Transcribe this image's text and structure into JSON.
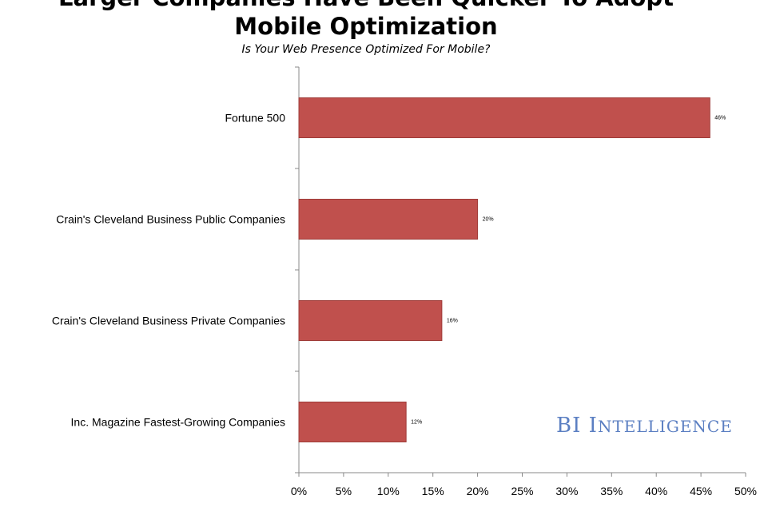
{
  "title_line1": "Larger Companies Have Been Quicker To Adopt",
  "title_line2": "Mobile Optimization",
  "subtitle": "Is Your Web Presence Optimized For Mobile?",
  "watermark": {
    "first": "BI",
    "second_initial": "I",
    "second_rest": "NTELLIGENCE"
  },
  "colors": {
    "bar": "#c0504d",
    "bar_edge": "#9e3b38",
    "axis": "#888888",
    "text": "#000000",
    "watermark": "#5b7fc2"
  },
  "chart_data": {
    "type": "bar",
    "orientation": "horizontal",
    "categories": [
      "Fortune 500",
      "Crain's Cleveland Business Public Companies",
      "Crain's Cleveland Business Private Companies",
      "Inc. Magazine Fastest-Growing Companies"
    ],
    "values": [
      46,
      20,
      16,
      12
    ],
    "data_labels": [
      "46%",
      "20%",
      "16%",
      "12%"
    ],
    "xlim": [
      0,
      50
    ],
    "xticks": [
      "0%",
      "5%",
      "10%",
      "15%",
      "20%",
      "25%",
      "30%",
      "35%",
      "40%",
      "45%",
      "50%"
    ],
    "grid": false,
    "title": "Larger Companies Have Been Quicker To Adopt Mobile Optimization",
    "subtitle": "Is Your Web Presence Optimized For Mobile?"
  }
}
